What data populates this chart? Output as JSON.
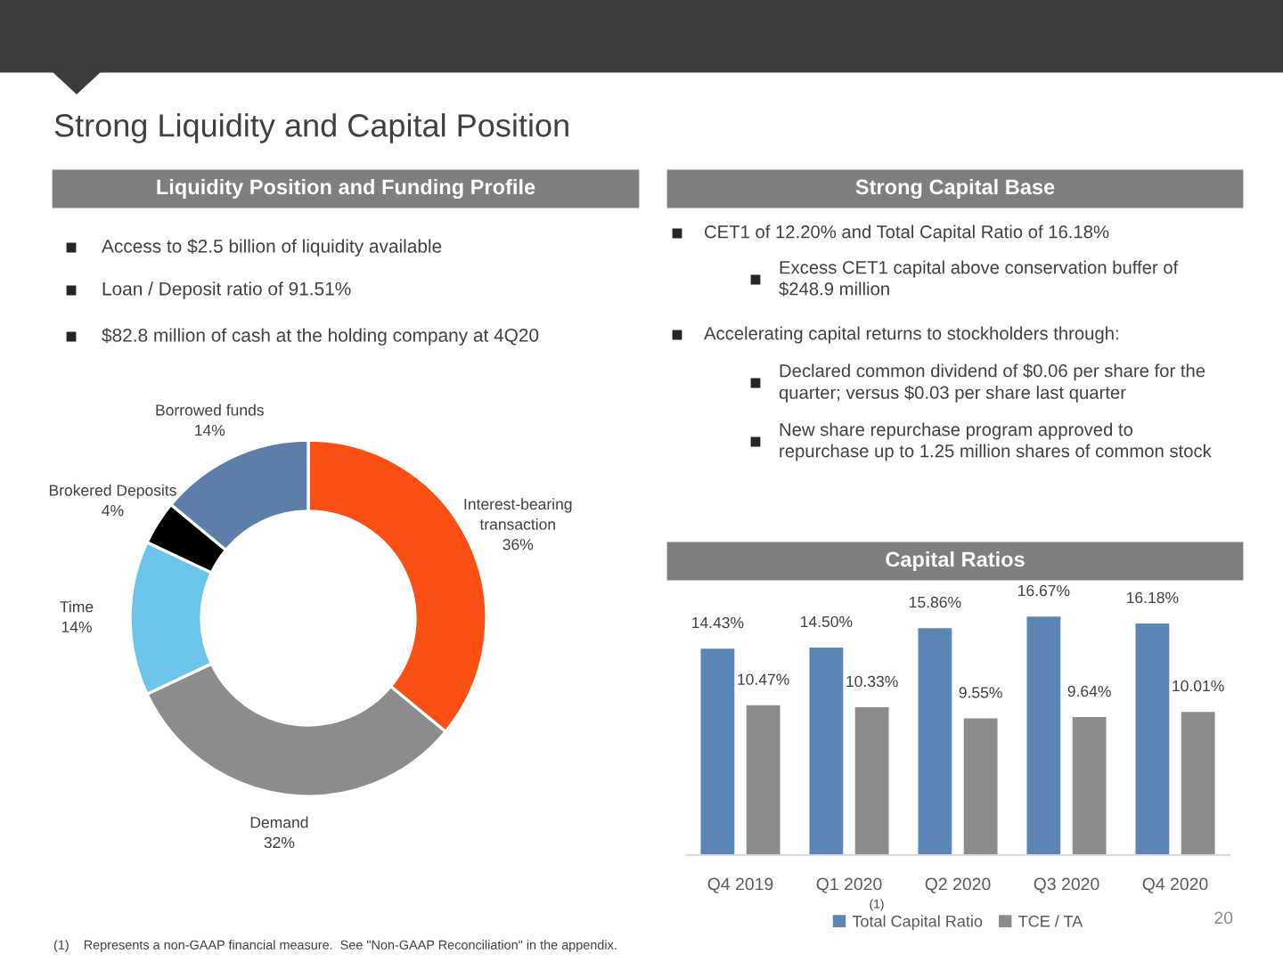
{
  "chart_data": [
    {
      "type": "other",
      "title": "Strong Liquidity and Capital Position",
      "annotations": [
        "(1)    Represents a non-GAAP financial measure.  See \"Non-GAAP Reconciliation\" in the appendix.",
        "20"
      ]
    },
    {
      "type": "other",
      "title": "Liquidity Position and Funding Profile",
      "annotations": [
        "Access to $2.5 billion of liquidity available",
        "Loan / Deposit ratio of 91.51%",
        "$82.8 million of cash at the holding company at 4Q20"
      ]
    },
    {
      "type": "donut",
      "categories": [
        "Interest-bearing\ntransaction",
        "Demand",
        "Time",
        "Brokered Deposits",
        "Borrowed funds"
      ],
      "values": [
        36,
        32,
        14,
        4,
        14
      ],
      "value_labels": [
        "36%",
        "32%",
        "14%",
        "4%",
        "14%"
      ],
      "colors": [
        "#fc4f14",
        "#8c8c8e",
        "#6cc5e8",
        "#000000",
        "#5b7fa8"
      ]
    },
    {
      "type": "other",
      "title": "Strong Capital Base",
      "annotations": [
        "CET1 of 12.20% and Total Capital Ratio of 16.18%",
        "Excess CET1 capital above conservation buffer of\n$248.9 million",
        "Accelerating capital returns to stockholders through:",
        "Declared common dividend of $0.06 per share for the\nquarter; versus $0.03 per share last quarter",
        "New share repurchase program approved to\nrepurchase up to 1.25 million shares of common stock"
      ]
    },
    {
      "type": "bar",
      "title": "Capital Ratios",
      "categories": [
        "Q4 2019",
        "Q1 2020",
        "Q2 2020",
        "Q3 2020",
        "Q4 2020"
      ],
      "legend": "bottom",
      "tick_labels": "x",
      "annotations": [
        "(1)"
      ],
      "series": [
        {
          "name": "Total Capital Ratio",
          "color": "#5b86b5",
          "values": [
            14.43,
            14.5,
            15.86,
            16.67,
            16.18
          ],
          "value_labels": [
            "14.43%",
            "14.50%",
            "15.86%",
            "16.67%",
            "16.18%"
          ]
        },
        {
          "name": "TCE / TA",
          "color": "#8c8c8c",
          "values": [
            10.47,
            10.33,
            9.55,
            9.64,
            10.01
          ],
          "value_labels": [
            "10.47%",
            "10.33%",
            "9.55%",
            "9.64%",
            "10.01%"
          ]
        }
      ]
    }
  ]
}
